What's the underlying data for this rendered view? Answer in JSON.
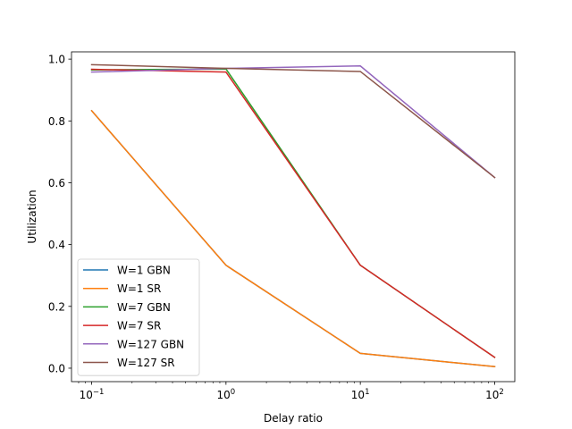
{
  "chart_data": {
    "type": "line",
    "title": "",
    "xlabel": "Delay ratio",
    "ylabel": "Utilization",
    "xscale": "log",
    "xlim": [
      0.0708,
      141.25
    ],
    "ylim": [
      -0.0435,
      1.0235
    ],
    "x": [
      0.1,
      1,
      10,
      100
    ],
    "x_ticks": [
      {
        "value": 0.1,
        "base": "10",
        "exp": "−1"
      },
      {
        "value": 1,
        "base": "10",
        "exp": "0"
      },
      {
        "value": 10,
        "base": "10",
        "exp": "1"
      },
      {
        "value": 100,
        "base": "10",
        "exp": "2"
      }
    ],
    "y_ticks": [
      {
        "value": 0.0,
        "label": "0.0"
      },
      {
        "value": 0.2,
        "label": "0.2"
      },
      {
        "value": 0.4,
        "label": "0.4"
      },
      {
        "value": 0.6,
        "label": "0.6"
      },
      {
        "value": 0.8,
        "label": "0.8"
      },
      {
        "value": 1.0,
        "label": "1.0"
      }
    ],
    "grid": false,
    "legend_position": "lower-left",
    "series": [
      {
        "name": "W=1 GBN",
        "color": "#1f77b4",
        "values": [
          0.833,
          0.333,
          0.048,
          0.005
        ]
      },
      {
        "name": "W=1 SR",
        "color": "#ff7f0e",
        "values": [
          0.833,
          0.333,
          0.048,
          0.005
        ]
      },
      {
        "name": "W=7 GBN",
        "color": "#2ca02c",
        "values": [
          0.965,
          0.968,
          0.333,
          0.035
        ]
      },
      {
        "name": "W=7 SR",
        "color": "#d62728",
        "values": [
          0.967,
          0.958,
          0.333,
          0.035
        ]
      },
      {
        "name": "W=127 GBN",
        "color": "#9467bd",
        "values": [
          0.958,
          0.97,
          0.978,
          0.617
        ]
      },
      {
        "name": "W=127 SR",
        "color": "#8c564b",
        "values": [
          0.982,
          0.97,
          0.96,
          0.617
        ]
      }
    ]
  }
}
